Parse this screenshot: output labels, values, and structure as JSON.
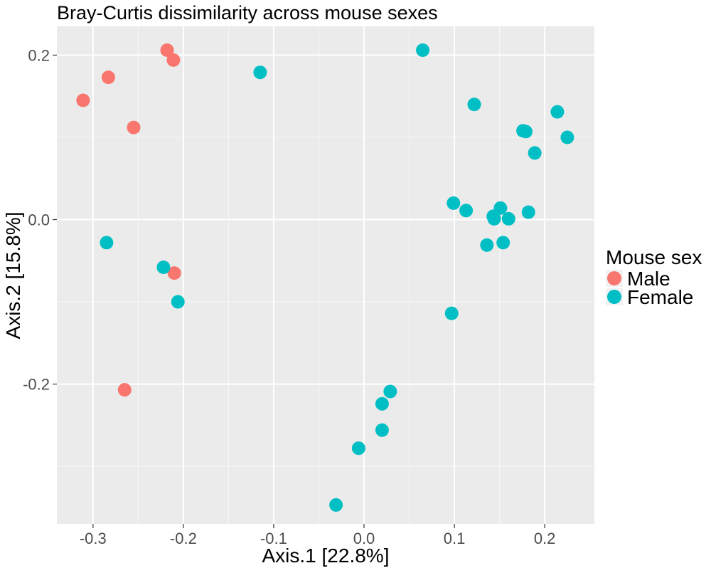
{
  "chart_data": {
    "type": "scatter",
    "title": "Bray-Curtis dissimilarity across mouse sexes",
    "xlabel": "Axis.1   [22.8%]",
    "ylabel": "Axis.2   [15.8%]",
    "xlim": [
      -0.34,
      0.255
    ],
    "ylim": [
      -0.37,
      0.235
    ],
    "x_ticks": [
      -0.3,
      -0.2,
      -0.1,
      0.0,
      0.1,
      0.2
    ],
    "x_tick_labels": [
      "-0.3",
      "-0.2",
      "-0.1",
      "0.0",
      "0.1",
      "0.2"
    ],
    "y_ticks": [
      -0.2,
      0.0,
      0.2
    ],
    "y_tick_labels": [
      "-0.2",
      "0.0",
      "0.2"
    ],
    "grid": true,
    "legend": {
      "title": "Mouse sex",
      "placement": "right"
    },
    "series": [
      {
        "name": "Male",
        "color": "#F8766D",
        "points": [
          {
            "x": -0.218,
            "y": 0.206
          },
          {
            "x": -0.211,
            "y": 0.194
          },
          {
            "x": -0.283,
            "y": 0.173
          },
          {
            "x": -0.311,
            "y": 0.145
          },
          {
            "x": -0.255,
            "y": 0.112
          },
          {
            "x": -0.21,
            "y": -0.065
          },
          {
            "x": -0.265,
            "y": -0.207
          }
        ]
      },
      {
        "name": "Female",
        "color": "#00BFC4",
        "points": [
          {
            "x": 0.065,
            "y": 0.206
          },
          {
            "x": -0.115,
            "y": 0.179
          },
          {
            "x": 0.122,
            "y": 0.14
          },
          {
            "x": 0.214,
            "y": 0.131
          },
          {
            "x": 0.176,
            "y": 0.108
          },
          {
            "x": 0.179,
            "y": 0.107
          },
          {
            "x": 0.225,
            "y": 0.1
          },
          {
            "x": 0.189,
            "y": 0.081
          },
          {
            "x": 0.099,
            "y": 0.02
          },
          {
            "x": 0.151,
            "y": 0.014
          },
          {
            "x": 0.113,
            "y": 0.011
          },
          {
            "x": 0.182,
            "y": 0.009
          },
          {
            "x": 0.143,
            "y": 0.004
          },
          {
            "x": 0.144,
            "y": 0.001
          },
          {
            "x": 0.16,
            "y": 0.001
          },
          {
            "x": -0.285,
            "y": -0.028
          },
          {
            "x": 0.154,
            "y": -0.028
          },
          {
            "x": 0.136,
            "y": -0.031
          },
          {
            "x": -0.222,
            "y": -0.058
          },
          {
            "x": -0.206,
            "y": -0.1
          },
          {
            "x": 0.097,
            "y": -0.114
          },
          {
            "x": 0.029,
            "y": -0.209
          },
          {
            "x": 0.02,
            "y": -0.224
          },
          {
            "x": 0.02,
            "y": -0.256
          },
          {
            "x": -0.006,
            "y": -0.278
          },
          {
            "x": -0.031,
            "y": -0.347
          }
        ]
      }
    ]
  }
}
